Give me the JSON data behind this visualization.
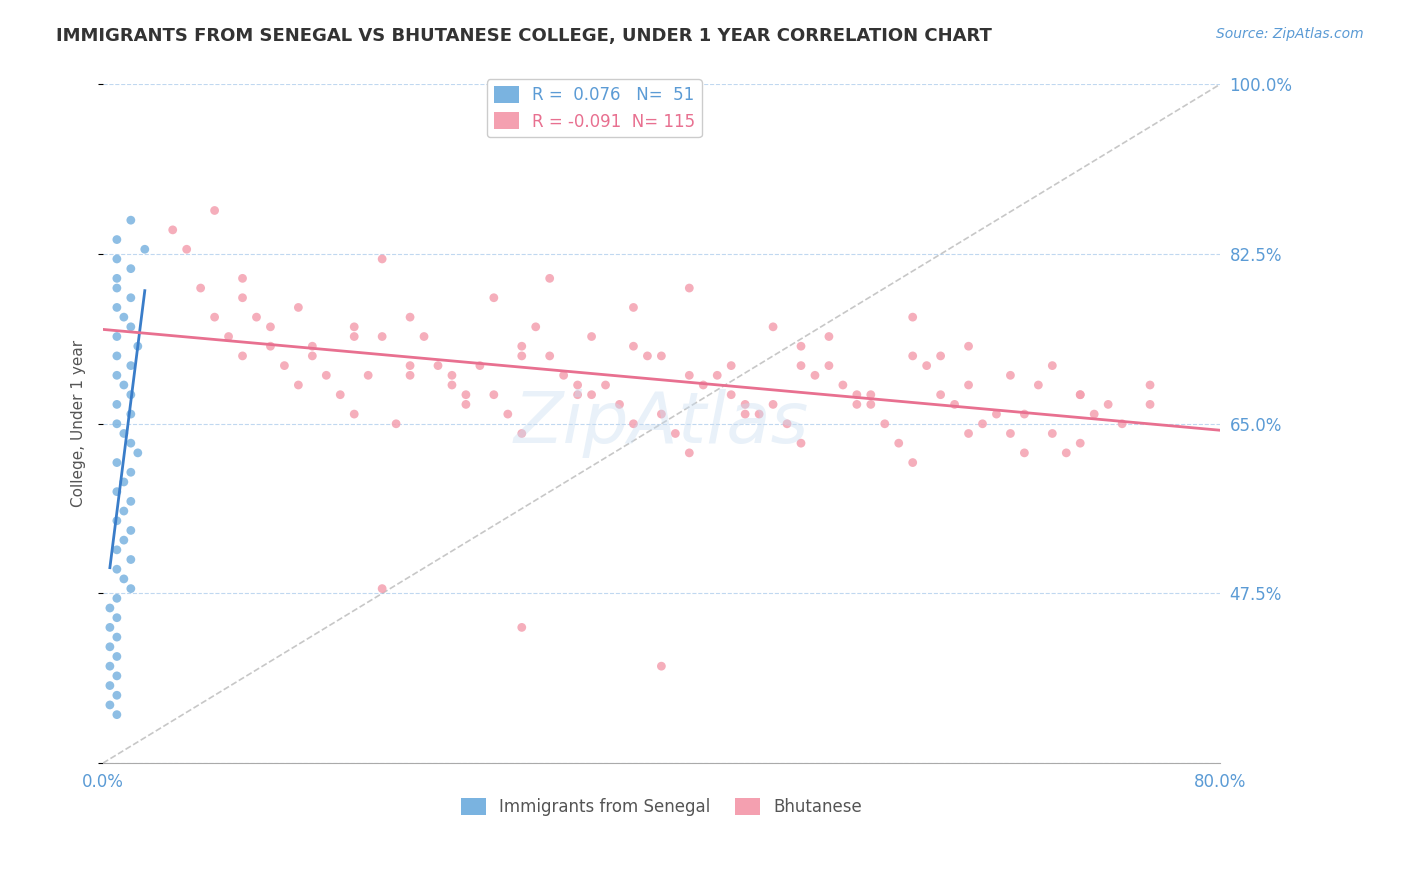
{
  "title": "IMMIGRANTS FROM SENEGAL VS BHUTANESE COLLEGE, UNDER 1 YEAR CORRELATION CHART",
  "source": "Source: ZipAtlas.com",
  "xlabel": "",
  "ylabel": "College, Under 1 year",
  "xlim": [
    0.0,
    0.8
  ],
  "ylim": [
    0.3,
    1.0
  ],
  "xticks": [
    0.0,
    0.8
  ],
  "xticklabels": [
    "0.0%",
    "80.0%"
  ],
  "yticks": [
    0.3,
    0.475,
    0.65,
    0.825,
    1.0
  ],
  "yticklabels": [
    "",
    "47.5%",
    "65.0%",
    "82.5%",
    "100.0%"
  ],
  "tick_color": "#5b9bd5",
  "grid_color": "#c0d8f0",
  "background_color": "#ffffff",
  "watermark": "ZipAtlas",
  "watermark_color": "#c8ddf0",
  "legend_R_blue": "0.076",
  "legend_N_blue": "51",
  "legend_R_pink": "-0.091",
  "legend_N_pink": "115",
  "blue_color": "#7ab3e0",
  "pink_color": "#f4a0b0",
  "blue_line_color": "#3a7dc9",
  "pink_line_color": "#e87090",
  "dot_size": 40,
  "blue_scatter_x": [
    0.02,
    0.01,
    0.03,
    0.01,
    0.02,
    0.01,
    0.01,
    0.02,
    0.01,
    0.015,
    0.02,
    0.01,
    0.025,
    0.01,
    0.02,
    0.01,
    0.015,
    0.02,
    0.01,
    0.02,
    0.01,
    0.015,
    0.02,
    0.025,
    0.01,
    0.02,
    0.015,
    0.01,
    0.02,
    0.015,
    0.01,
    0.02,
    0.015,
    0.01,
    0.02,
    0.01,
    0.015,
    0.02,
    0.01,
    0.005,
    0.01,
    0.005,
    0.01,
    0.005,
    0.01,
    0.005,
    0.01,
    0.005,
    0.01,
    0.005,
    0.01
  ],
  "blue_scatter_y": [
    0.86,
    0.84,
    0.83,
    0.82,
    0.81,
    0.8,
    0.79,
    0.78,
    0.77,
    0.76,
    0.75,
    0.74,
    0.73,
    0.72,
    0.71,
    0.7,
    0.69,
    0.68,
    0.67,
    0.66,
    0.65,
    0.64,
    0.63,
    0.62,
    0.61,
    0.6,
    0.59,
    0.58,
    0.57,
    0.56,
    0.55,
    0.54,
    0.53,
    0.52,
    0.51,
    0.5,
    0.49,
    0.48,
    0.47,
    0.46,
    0.45,
    0.44,
    0.43,
    0.42,
    0.41,
    0.4,
    0.39,
    0.38,
    0.37,
    0.36,
    0.35
  ],
  "pink_scatter_x": [
    0.05,
    0.08,
    0.12,
    0.15,
    0.1,
    0.2,
    0.25,
    0.18,
    0.3,
    0.22,
    0.35,
    0.28,
    0.4,
    0.32,
    0.45,
    0.38,
    0.5,
    0.42,
    0.55,
    0.48,
    0.6,
    0.52,
    0.65,
    0.58,
    0.7,
    0.62,
    0.75,
    0.68,
    0.06,
    0.1,
    0.14,
    0.18,
    0.22,
    0.26,
    0.3,
    0.34,
    0.38,
    0.42,
    0.46,
    0.5,
    0.54,
    0.58,
    0.62,
    0.66,
    0.7,
    0.07,
    0.11,
    0.15,
    0.19,
    0.23,
    0.27,
    0.31,
    0.35,
    0.39,
    0.43,
    0.47,
    0.51,
    0.55,
    0.59,
    0.63,
    0.67,
    0.71,
    0.75,
    0.08,
    0.12,
    0.16,
    0.2,
    0.24,
    0.28,
    0.32,
    0.36,
    0.4,
    0.44,
    0.48,
    0.52,
    0.56,
    0.6,
    0.64,
    0.68,
    0.72,
    0.09,
    0.13,
    0.17,
    0.21,
    0.25,
    0.29,
    0.33,
    0.37,
    0.41,
    0.45,
    0.49,
    0.53,
    0.57,
    0.61,
    0.65,
    0.69,
    0.73,
    0.1,
    0.14,
    0.18,
    0.22,
    0.26,
    0.3,
    0.34,
    0.38,
    0.42,
    0.46,
    0.5,
    0.54,
    0.58,
    0.62,
    0.66,
    0.7,
    0.2,
    0.3,
    0.4
  ],
  "pink_scatter_y": [
    0.85,
    0.87,
    0.75,
    0.72,
    0.78,
    0.82,
    0.7,
    0.75,
    0.73,
    0.76,
    0.74,
    0.78,
    0.72,
    0.8,
    0.71,
    0.77,
    0.73,
    0.79,
    0.68,
    0.75,
    0.72,
    0.74,
    0.7,
    0.76,
    0.68,
    0.73,
    0.69,
    0.71,
    0.83,
    0.8,
    0.77,
    0.74,
    0.71,
    0.68,
    0.72,
    0.69,
    0.73,
    0.7,
    0.67,
    0.71,
    0.68,
    0.72,
    0.69,
    0.66,
    0.68,
    0.79,
    0.76,
    0.73,
    0.7,
    0.74,
    0.71,
    0.75,
    0.68,
    0.72,
    0.69,
    0.66,
    0.7,
    0.67,
    0.71,
    0.65,
    0.69,
    0.66,
    0.67,
    0.76,
    0.73,
    0.7,
    0.74,
    0.71,
    0.68,
    0.72,
    0.69,
    0.66,
    0.7,
    0.67,
    0.71,
    0.65,
    0.68,
    0.66,
    0.64,
    0.67,
    0.74,
    0.71,
    0.68,
    0.65,
    0.69,
    0.66,
    0.7,
    0.67,
    0.64,
    0.68,
    0.65,
    0.69,
    0.63,
    0.67,
    0.64,
    0.62,
    0.65,
    0.72,
    0.69,
    0.66,
    0.7,
    0.67,
    0.64,
    0.68,
    0.65,
    0.62,
    0.66,
    0.63,
    0.67,
    0.61,
    0.64,
    0.62,
    0.63,
    0.48,
    0.44,
    0.4
  ]
}
